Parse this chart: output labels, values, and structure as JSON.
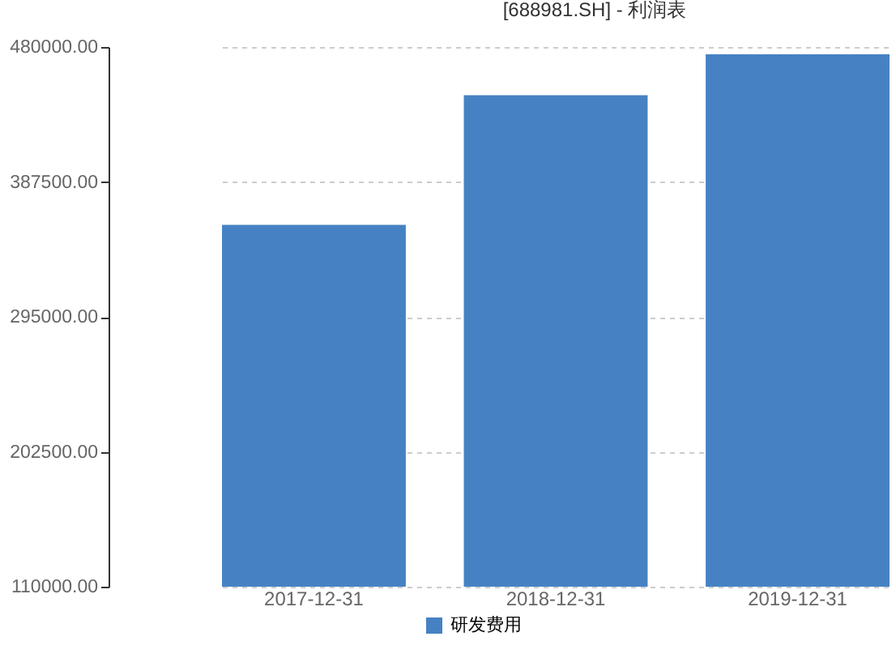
{
  "chart_data": {
    "type": "bar",
    "title": "[688981.SH] - 利润表",
    "categories": [
      "2017-12-31",
      "2018-12-31",
      "2019-12-31"
    ],
    "series": [
      {
        "name": "研发费用",
        "color": "#4682c3",
        "values": [
          358000,
          447000,
          475000
        ]
      }
    ],
    "ylim": [
      110000,
      480000
    ],
    "yticks": [
      {
        "value": 110000,
        "label": "110000.00"
      },
      {
        "value": 202500,
        "label": "202500.00"
      },
      {
        "value": 295000,
        "label": "295000.00"
      },
      {
        "value": 387500,
        "label": "387500.00"
      },
      {
        "value": 480000,
        "label": "480000.00"
      }
    ],
    "grid": "y",
    "legend": "bottom"
  }
}
